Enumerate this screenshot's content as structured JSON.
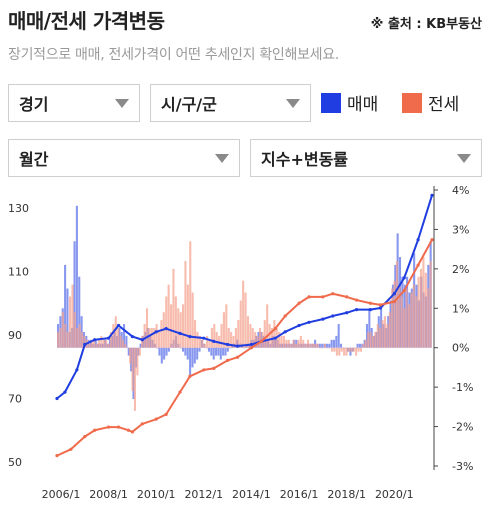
{
  "header": {
    "title": "매매/전세 가격변동",
    "source": "※ 출처 : KB부동산",
    "subtitle": "장기적으로 매매, 전세가격이 어떤 추세인지 확인해보세요."
  },
  "filters": {
    "region": "경기",
    "district": "시/구/군",
    "period": "월간",
    "metric": "지수+변동률"
  },
  "legend": [
    {
      "label": "매매",
      "color": "#1f3de0"
    },
    {
      "label": "전세",
      "color": "#f06a4c"
    }
  ],
  "chart_data": {
    "type": "bar+line",
    "x_ticks": [
      "2006/1",
      "2008/1",
      "2010/1",
      "2012/1",
      "2014/1",
      "2016/1",
      "2018/1",
      "2020/1"
    ],
    "x_range": [
      "2005/11",
      "2021/8"
    ],
    "y_left": {
      "ticks": [
        "130",
        "110",
        "90",
        "70",
        "50"
      ],
      "range": [
        50,
        135
      ]
    },
    "y_right": {
      "ticks": [
        "4%",
        "3%",
        "2%",
        "1%",
        "0%",
        "-1%",
        "-2%",
        "-3%"
      ],
      "range": [
        -3,
        4
      ]
    },
    "series": [
      {
        "name": "매매",
        "kind": "index-line",
        "color": "#1f3de0",
        "points": [
          [
            "2005/11",
            70
          ],
          [
            "2006/3",
            72
          ],
          [
            "2006/9",
            79
          ],
          [
            "2007/1",
            87
          ],
          [
            "2007/6",
            88.5
          ],
          [
            "2008/1",
            89
          ],
          [
            "2008/6",
            93
          ],
          [
            "2009/1",
            89.5
          ],
          [
            "2009/6",
            88.5
          ],
          [
            "2010/1",
            91
          ],
          [
            "2010/6",
            92
          ],
          [
            "2011/1",
            90.5
          ],
          [
            "2011/6",
            89.5
          ],
          [
            "2012/1",
            89
          ],
          [
            "2012/6",
            88
          ],
          [
            "2013/1",
            87
          ],
          [
            "2013/6",
            86.5
          ],
          [
            "2014/1",
            87
          ],
          [
            "2014/6",
            88
          ],
          [
            "2015/1",
            89
          ],
          [
            "2015/6",
            91
          ],
          [
            "2016/1",
            93
          ],
          [
            "2016/6",
            94
          ],
          [
            "2017/1",
            95
          ],
          [
            "2017/6",
            96
          ],
          [
            "2018/1",
            97
          ],
          [
            "2018/6",
            98
          ],
          [
            "2019/1",
            98
          ],
          [
            "2019/6",
            98.5
          ],
          [
            "2020/1",
            103
          ],
          [
            "2020/6",
            108
          ],
          [
            "2021/1",
            120
          ],
          [
            "2021/8",
            134
          ]
        ]
      },
      {
        "name": "전세",
        "kind": "index-line",
        "color": "#f06a4c",
        "points": [
          [
            "2005/11",
            52
          ],
          [
            "2006/6",
            54
          ],
          [
            "2007/1",
            58
          ],
          [
            "2007/6",
            60
          ],
          [
            "2008/1",
            61
          ],
          [
            "2008/6",
            61
          ],
          [
            "2008/11",
            60
          ],
          [
            "2009/1",
            59.5
          ],
          [
            "2009/6",
            62
          ],
          [
            "2010/1",
            63.5
          ],
          [
            "2010/6",
            65
          ],
          [
            "2011/1",
            72
          ],
          [
            "2011/6",
            77
          ],
          [
            "2012/1",
            79
          ],
          [
            "2012/6",
            79.5
          ],
          [
            "2013/1",
            82
          ],
          [
            "2013/6",
            83
          ],
          [
            "2014/1",
            86
          ],
          [
            "2014/6",
            88
          ],
          [
            "2015/1",
            92
          ],
          [
            "2015/6",
            96
          ],
          [
            "2016/1",
            100
          ],
          [
            "2016/6",
            102
          ],
          [
            "2017/1",
            102
          ],
          [
            "2017/6",
            103
          ],
          [
            "2018/1",
            102
          ],
          [
            "2018/6",
            101
          ],
          [
            "2019/1",
            100
          ],
          [
            "2019/6",
            99.5
          ],
          [
            "2020/1",
            100.5
          ],
          [
            "2020/6",
            104
          ],
          [
            "2021/1",
            112
          ],
          [
            "2021/8",
            120
          ]
        ]
      },
      {
        "name": "매매",
        "kind": "monthly-change-bars",
        "color": "#5f73e8",
        "values_pct": [
          0.6,
          0.8,
          1.0,
          2.1,
          1.5,
          0.4,
          0.5,
          2.7,
          3.6,
          1.8,
          0.8,
          0.4,
          0.3,
          0.2,
          0.2,
          0.1,
          0.2,
          0.1,
          0.1,
          0.1,
          0.2,
          0.1,
          0.2,
          0.3,
          0.4,
          0.3,
          0.5,
          0.4,
          0.6,
          0.3,
          -0.2,
          -0.6,
          -1.3,
          -0.5,
          -0.2,
          0.1,
          0.3,
          0.4,
          0.5,
          0.3,
          0.2,
          0.1,
          0.0,
          -0.2,
          -0.4,
          -0.3,
          -0.2,
          -0.1,
          0.1,
          0.2,
          0.3,
          0.1,
          0.0,
          -0.1,
          -0.2,
          -0.3,
          -0.7,
          -0.5,
          -0.4,
          -0.3,
          -0.1,
          0.2,
          0.1,
          0.0,
          -0.1,
          -0.2,
          -0.3,
          -0.2,
          -0.2,
          -0.3,
          -0.2,
          -0.2,
          -0.1,
          0.0,
          0.1,
          0.1,
          0.2,
          0.1,
          0.1,
          0.0,
          0.1,
          0.1,
          0.2,
          0.2,
          0.3,
          0.4,
          0.4,
          0.3,
          0.2,
          0.2,
          0.1,
          0.3,
          0.2,
          0.2,
          0.1,
          0.1,
          0.1,
          0.1,
          0.1,
          0.1,
          0.2,
          0.2,
          0.1,
          0.1,
          0.1,
          0.1,
          0.1,
          0.1,
          0.1,
          0.2,
          0.1,
          0.1,
          0.1,
          0.1,
          0.1,
          0.1,
          0.2,
          0.2,
          0.3,
          0.6,
          0.1,
          0.0,
          0.0,
          -0.1,
          -0.2,
          -0.1,
          0.0,
          0.1,
          0.1,
          0.1,
          0.2,
          0.6,
          1.0,
          0.5,
          0.3,
          0.4,
          0.8,
          1.1,
          0.6,
          0.5,
          0.8,
          1.2,
          1.6,
          2.1,
          2.9,
          2.3,
          1.8,
          1.6,
          1.8,
          1.4,
          1.5,
          2.4,
          1.6,
          1.2,
          1.8,
          1.4,
          1.3,
          2.1,
          2.7
        ]
      },
      {
        "name": "전세",
        "kind": "monthly-change-bars",
        "color": "#f3a08c",
        "values_pct": [
          0.4,
          0.5,
          0.9,
          0.6,
          0.4,
          1.3,
          1.6,
          0.9,
          0.5,
          0.6,
          0.4,
          0.3,
          0.2,
          0.1,
          0.2,
          0.2,
          0.1,
          0.2,
          0.3,
          0.2,
          0.2,
          0.1,
          0.4,
          0.6,
          0.8,
          0.5,
          0.3,
          0.2,
          0.1,
          0.0,
          -0.4,
          -1.1,
          -1.6,
          -0.7,
          -0.2,
          0.3,
          0.6,
          1.0,
          0.5,
          0.5,
          0.5,
          0.6,
          0.4,
          0.7,
          0.9,
          1.3,
          1.6,
          1.1,
          2.0,
          1.3,
          1.0,
          0.9,
          1.1,
          2.2,
          1.6,
          2.7,
          1.4,
          0.7,
          0.4,
          0.3,
          0.2,
          0.1,
          0.3,
          0.2,
          0.5,
          0.6,
          0.4,
          0.3,
          0.6,
          0.9,
          1.1,
          0.5,
          0.4,
          0.3,
          0.5,
          0.7,
          1.2,
          1.7,
          1.4,
          0.8,
          0.6,
          0.5,
          0.4,
          0.3,
          0.5,
          0.4,
          0.7,
          1.1,
          0.6,
          0.5,
          0.7,
          0.5,
          0.4,
          0.3,
          0.3,
          0.2,
          0.2,
          0.1,
          0.2,
          0.1,
          0.2,
          0.3,
          0.2,
          0.1,
          0.2,
          0.1,
          0.1,
          0.1,
          0.1,
          0.0,
          0.0,
          0.1,
          0.0,
          0.0,
          -0.1,
          -0.1,
          -0.2,
          -0.2,
          -0.1,
          -0.2,
          -0.2,
          -0.1,
          -0.1,
          -0.1,
          -0.2,
          -0.1,
          -0.1,
          0.1,
          0.2,
          0.4,
          0.4,
          0.3,
          0.4,
          0.6,
          0.5,
          0.7,
          0.8,
          0.6,
          0.9,
          1.5,
          1.7,
          2.2,
          1.6,
          1.3,
          1.0,
          1.5,
          1.1,
          1.4,
          1.6,
          1.3,
          1.8,
          2.0,
          2.3,
          1.9,
          1.5,
          2.2
        ]
      }
    ],
    "grid": false
  }
}
